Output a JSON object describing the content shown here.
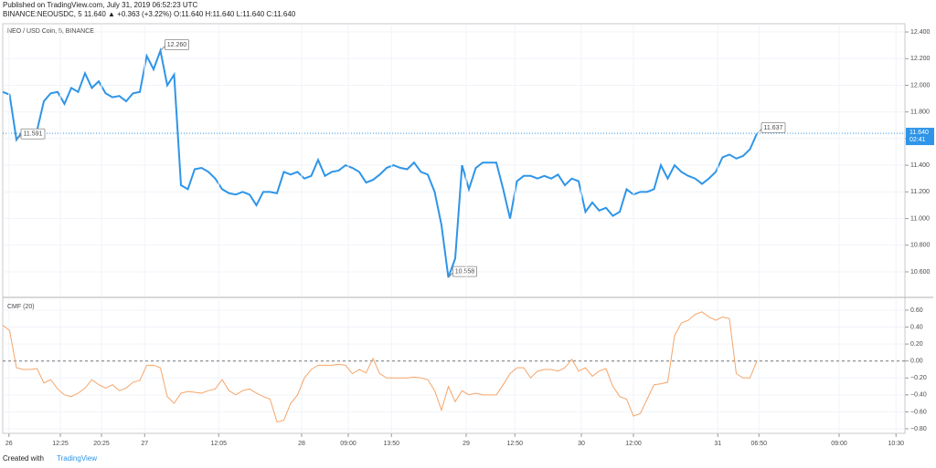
{
  "header": {
    "published": "Published on TradingView.com, July 31, 2019 06:52:23 UTC",
    "symbol_line": "BINANCE:NEOUSDC, 5  11.640 ▲ +0.363 (+3.22%) O:11.640 H:11.640 L:11.640 C:11.640"
  },
  "footer": {
    "created": "Created with",
    "brand": "TradingView"
  },
  "chart_data": [
    {
      "type": "line",
      "title": "NEO / USD Coin, 5, BINANCE",
      "xlim": [
        0,
        131.6
      ],
      "ylim": [
        10.415,
        12.462
      ],
      "yticks": [
        {
          "value": 12.4,
          "label": "12.400"
        },
        {
          "value": 12.2,
          "label": "12.200"
        },
        {
          "value": 12.0,
          "label": "12.000"
        },
        {
          "value": 11.8,
          "label": "11.800"
        },
        {
          "value": 11.6,
          "label": "11.600"
        },
        {
          "value": 11.4,
          "label": "11.400"
        },
        {
          "value": 11.2,
          "label": "11.200"
        },
        {
          "value": 11.0,
          "label": "11.000"
        },
        {
          "value": 10.8,
          "label": "10.800"
        },
        {
          "value": 10.6,
          "label": "10.600"
        }
      ],
      "grid": true,
      "series": [
        {
          "name": "NEOUSDC",
          "color": "#2e95e8",
          "values": [
            11.95,
            11.93,
            11.591,
            11.66,
            11.66,
            11.66,
            11.88,
            11.94,
            11.95,
            11.86,
            11.98,
            11.95,
            12.09,
            11.98,
            12.03,
            11.94,
            11.91,
            11.92,
            11.88,
            11.94,
            11.95,
            12.22,
            12.12,
            12.26,
            12.0,
            12.08,
            11.25,
            11.22,
            11.37,
            11.38,
            11.35,
            11.3,
            11.22,
            11.19,
            11.18,
            11.2,
            11.18,
            11.1,
            11.2,
            11.2,
            11.19,
            11.35,
            11.33,
            11.35,
            11.3,
            11.32,
            11.44,
            11.32,
            11.35,
            11.36,
            11.4,
            11.38,
            11.35,
            11.27,
            11.29,
            11.33,
            11.38,
            11.4,
            11.38,
            11.37,
            11.42,
            11.35,
            11.33,
            11.2,
            10.95,
            10.558,
            10.7,
            11.4,
            11.22,
            11.38,
            11.42,
            11.42,
            11.42,
            11.22,
            11.0,
            11.28,
            11.32,
            11.32,
            11.3,
            11.32,
            11.3,
            11.33,
            11.25,
            11.3,
            11.28,
            11.05,
            11.12,
            11.06,
            11.08,
            11.02,
            11.05,
            11.22,
            11.18,
            11.2,
            11.2,
            11.22,
            11.4,
            11.3,
            11.4,
            11.35,
            11.32,
            11.3,
            11.26,
            11.3,
            11.35,
            11.46,
            11.48,
            11.45,
            11.47,
            11.52,
            11.637
          ]
        }
      ],
      "annotations": [
        {
          "x": 2,
          "value": 11.591,
          "label": "11.591"
        },
        {
          "x": 23,
          "value": 12.26,
          "label": "12.260"
        },
        {
          "x": 65,
          "value": 10.558,
          "label": "10.558"
        },
        {
          "x": 110,
          "value": 11.637,
          "label": "11.637"
        }
      ],
      "last_value": {
        "value": 11.64,
        "label": "11.640"
      },
      "countdown": "02:41"
    },
    {
      "type": "line",
      "title": "CMF (20)",
      "xlim": [
        0,
        131.6
      ],
      "ylim": [
        -0.854,
        0.729
      ],
      "yticks": [
        {
          "value": 0.6,
          "label": "0.60"
        },
        {
          "value": 0.4,
          "label": "0.40"
        },
        {
          "value": 0.2,
          "label": "0.20"
        },
        {
          "value": 0,
          "label": "0.00"
        },
        {
          "value": -0.2,
          "label": "−0.20"
        },
        {
          "value": -0.4,
          "label": "−0.40"
        },
        {
          "value": -0.6,
          "label": "−0.60"
        },
        {
          "value": -0.8,
          "label": "−0.80"
        }
      ],
      "grid": true,
      "hline": 0,
      "xticks": [
        {
          "value": 0.9,
          "label": "26"
        },
        {
          "value": 8.4,
          "label": "12:25"
        },
        {
          "value": 14.4,
          "label": "20:25"
        },
        {
          "value": 20.7,
          "label": "27"
        },
        {
          "value": 31.5,
          "label": "12:05"
        },
        {
          "value": 43.6,
          "label": "28"
        },
        {
          "value": 50.4,
          "label": "09:00"
        },
        {
          "value": 56.7,
          "label": "13:50"
        },
        {
          "value": 67.6,
          "label": "29"
        },
        {
          "value": 74.7,
          "label": "12:50"
        },
        {
          "value": 84.4,
          "label": "30"
        },
        {
          "value": 92,
          "label": "12:00"
        },
        {
          "value": 104.3,
          "label": "31"
        },
        {
          "value": 110.3,
          "label": "06:50"
        },
        {
          "value": 122,
          "label": "09:00"
        },
        {
          "value": 130.3,
          "label": "10:30"
        }
      ],
      "series": [
        {
          "name": "CMF",
          "color": "#f5a56a",
          "values": [
            0.42,
            0.36,
            -0.08,
            -0.1,
            -0.1,
            -0.09,
            -0.26,
            -0.22,
            -0.33,
            -0.4,
            -0.42,
            -0.38,
            -0.32,
            -0.22,
            -0.28,
            -0.32,
            -0.28,
            -0.35,
            -0.32,
            -0.25,
            -0.23,
            -0.05,
            -0.05,
            -0.08,
            -0.42,
            -0.5,
            -0.38,
            -0.36,
            -0.37,
            -0.38,
            -0.35,
            -0.33,
            -0.22,
            -0.35,
            -0.4,
            -0.35,
            -0.33,
            -0.38,
            -0.42,
            -0.45,
            -0.72,
            -0.7,
            -0.5,
            -0.4,
            -0.2,
            -0.1,
            -0.05,
            -0.05,
            -0.05,
            -0.04,
            -0.05,
            -0.15,
            -0.1,
            -0.14,
            0.03,
            -0.15,
            -0.2,
            -0.2,
            -0.2,
            -0.2,
            -0.19,
            -0.2,
            -0.22,
            -0.35,
            -0.58,
            -0.3,
            -0.48,
            -0.35,
            -0.4,
            -0.38,
            -0.4,
            -0.4,
            -0.4,
            -0.28,
            -0.15,
            -0.08,
            -0.08,
            -0.2,
            -0.12,
            -0.1,
            -0.1,
            -0.12,
            -0.08,
            0.02,
            -0.12,
            -0.08,
            -0.18,
            -0.12,
            -0.09,
            -0.3,
            -0.42,
            -0.45,
            -0.65,
            -0.62,
            -0.45,
            -0.28,
            -0.27,
            -0.25,
            0.3,
            0.45,
            0.48,
            0.55,
            0.58,
            0.52,
            0.48,
            0.52,
            0.5,
            -0.15,
            -0.2,
            -0.2,
            0.0
          ]
        }
      ]
    }
  ]
}
